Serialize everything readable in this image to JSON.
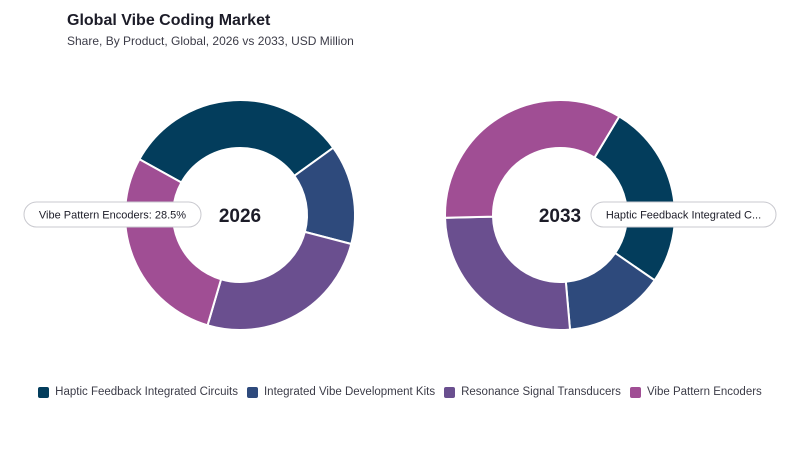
{
  "header": {
    "title": "Global Vibe Coding Market",
    "subtitle": "Share, By Product, Global, 2026 vs 2033, USD Million"
  },
  "colors": {
    "Haptic Feedback Integrated Circuits": "#033d5c",
    "Integrated Vibe Development Kits": "#2e4a7c",
    "Resonance Signal Transducers": "#6a4f8f",
    "Vibe Pattern Encoders": "#a04e94"
  },
  "chart_data": [
    {
      "type": "pie",
      "donut": true,
      "center_label": "2026",
      "categories": [
        "Haptic Feedback Integrated Circuits",
        "Integrated Vibe Development Kits",
        "Resonance Signal Transducers",
        "Vibe Pattern Encoders"
      ],
      "values": [
        32,
        14,
        25.5,
        28.5
      ],
      "tooltip": {
        "text": "Vibe Pattern Encoders: 28.5%"
      }
    },
    {
      "type": "pie",
      "donut": true,
      "center_label": "2033",
      "categories": [
        "Haptic Feedback Integrated Circuits",
        "Integrated Vibe Development Kits",
        "Resonance Signal Transducers",
        "Vibe Pattern Encoders"
      ],
      "values": [
        26,
        14,
        26,
        34
      ],
      "tooltip": {
        "text": "Haptic Feedback Integrated C..."
      }
    }
  ],
  "legend": {
    "items": [
      "Haptic Feedback Integrated Circuits",
      "Integrated Vibe Development Kits",
      "Resonance Signal Transducers",
      "Vibe Pattern Encoders"
    ]
  }
}
